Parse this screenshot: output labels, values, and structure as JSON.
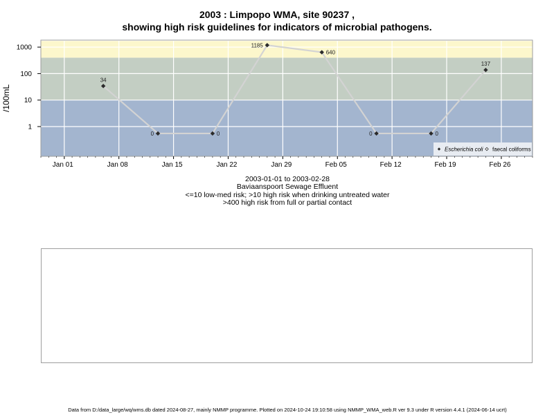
{
  "title_line1": "2003 : Limpopo WMA, site 90237 ,",
  "title_line2": "showing high risk guidelines for indicators of microbial pathogens.",
  "subtitle_lines": [
    "2003-01-01 to 2003-02-28",
    "Baviaanspoort Sewage Effluent",
    "<=10 low-med risk; >10 high risk when drinking untreated water",
    ">400 high risk from full or partial contact"
  ],
  "footer": "Data from D:/data_large/wq/wms.db dated 2024-08-27, mainly NMMP programme. Plotted on 2024-10-24 19:10:58 using NMMP_WMA_web.R ver 9.3 under R version 4.4.1 (2024-06-14 ucrt)",
  "chart_data": {
    "type": "line",
    "title": "2003 : Limpopo WMA, site 90237 ,",
    "ylabel": "/100mL",
    "y_scale": "log",
    "y_ticks": [
      1,
      10,
      100,
      1000
    ],
    "y_tick_labels": [
      "1",
      "10",
      "100",
      "1000"
    ],
    "x_ticks": [
      "2003-01-01",
      "2003-01-08",
      "2003-01-15",
      "2003-01-22",
      "2003-01-29",
      "2003-02-05",
      "2003-02-12",
      "2003-02-19",
      "2003-02-26"
    ],
    "x_tick_labels": [
      "Jan 01",
      "Jan 08",
      "Jan 15",
      "Jan 22",
      "Jan 29",
      "Feb 05",
      "Feb 12",
      "Feb 19",
      "Feb 26"
    ],
    "xlim": [
      "2002-12-29",
      "2003-03-02"
    ],
    "grid": true,
    "legend_position": "bottom-right",
    "risk_bands": [
      {
        "from": 0,
        "to": 10,
        "label": "low-med risk",
        "color": "#a3b5cf"
      },
      {
        "from": 10,
        "to": 400,
        "label": "high risk drinking",
        "color": "#c3cec3"
      },
      {
        "from": 400,
        "to": 1700,
        "label": "high risk contact",
        "color": "#fcf7cc"
      }
    ],
    "series": [
      {
        "name": "Escherichia coli",
        "color": "#d3d3d3",
        "marker_color": "#2b2b2b",
        "x": [
          "2003-01-06",
          "2003-01-13",
          "2003-01-20",
          "2003-01-27",
          "2003-02-03",
          "2003-02-10",
          "2003-02-17",
          "2003-02-24"
        ],
        "values": [
          34,
          0,
          0,
          1185,
          640,
          0,
          0,
          137
        ],
        "labels": [
          "34",
          "0",
          "0",
          "1185",
          "640",
          "0",
          "0",
          "137"
        ],
        "label_side": [
          "above",
          "left",
          "right",
          "left",
          "right",
          "left",
          "right",
          "above"
        ]
      },
      {
        "name": "faecal coliforms",
        "color": "#2b2b2b",
        "x": [],
        "values": []
      }
    ]
  }
}
